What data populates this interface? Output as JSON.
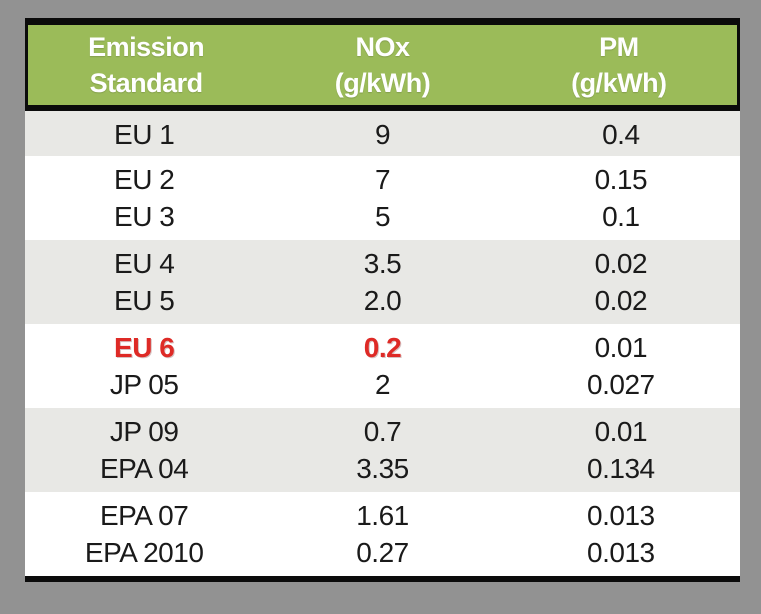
{
  "table": {
    "columns": [
      {
        "line1": "Emission",
        "line2": "Standard"
      },
      {
        "line1": "NOx",
        "line2": "(g/kWh)"
      },
      {
        "line1": "PM",
        "line2": "(g/kWh)"
      }
    ],
    "bands": [
      {
        "shade": "gray",
        "rows": [
          {
            "standard": "EU 1",
            "nox": "9",
            "pm": "0.4"
          }
        ]
      },
      {
        "shade": "white",
        "rows": [
          {
            "standard": "EU 2",
            "nox": "7",
            "pm": "0.15"
          },
          {
            "standard": "EU 3",
            "nox": "5",
            "pm": "0.1"
          }
        ]
      },
      {
        "shade": "gray",
        "rows": [
          {
            "standard": "EU 4",
            "nox": "3.5",
            "pm": "0.02"
          },
          {
            "standard": "EU 5",
            "nox": "2.0",
            "pm": "0.02"
          }
        ]
      },
      {
        "shade": "white",
        "rows": [
          {
            "standard": "EU 6",
            "nox": "0.2",
            "pm": "0.01",
            "highlighted": true
          },
          {
            "standard": "JP 05",
            "nox": "2",
            "pm": "0.027"
          }
        ]
      },
      {
        "shade": "gray",
        "rows": [
          {
            "standard": "JP 09",
            "nox": "0.7",
            "pm": "0.01"
          },
          {
            "standard": "EPA 04",
            "nox": "3.35",
            "pm": "0.134"
          }
        ]
      },
      {
        "shade": "white",
        "rows": [
          {
            "standard": "EPA 07",
            "nox": "1.61",
            "pm": "0.013"
          },
          {
            "standard": "EPA 2010",
            "nox": "0.27",
            "pm": "0.013"
          }
        ]
      }
    ],
    "colors": {
      "page_bg": "#929292",
      "header_bg": "#9BBB59",
      "band_gray": "#E8E8E5",
      "frame_black": "#0B0B0B",
      "highlight_red": "#DE2A26"
    }
  }
}
